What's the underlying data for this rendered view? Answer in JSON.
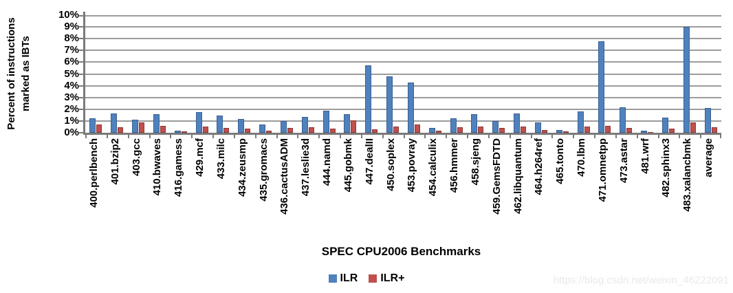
{
  "chart_data": {
    "type": "bar",
    "title": "",
    "xlabel": "SPEC CPU2006 Benchmarks",
    "ylabel": "Percent of instructions marked as IBTs",
    "ylabel_lines": [
      "Percent of instructions",
      "marked as IBTs"
    ],
    "ylim": [
      0,
      10
    ],
    "ytick_step": 1,
    "yticks": [
      "0%",
      "1%",
      "2%",
      "3%",
      "4%",
      "5%",
      "6%",
      "7%",
      "8%",
      "9%",
      "10%"
    ],
    "grid": true,
    "legend_position": "bottom",
    "categories": [
      "400.perlbench",
      "401.bzip2",
      "403.gcc",
      "410.bwaves",
      "416.gamess",
      "429.mcf",
      "433.milc",
      "434.zeusmp",
      "435.gromacs",
      "436.cactusADM",
      "437.leslie3d",
      "444.namd",
      "445.gobmk",
      "447.dealII",
      "450.soplex",
      "453.povray",
      "454.calculix",
      "456.hmmer",
      "458.sjeng",
      "459.GemsFDTD",
      "462.libquantum",
      "464.h264ref",
      "465.tonto",
      "470.lbm",
      "471.omnetpp",
      "473.astar",
      "481.wrf",
      "482.sphinx3",
      "483.xalancbmk",
      "average"
    ],
    "series": [
      {
        "name": "ILR",
        "color": "#4F81BD",
        "border_color": "#3a6191",
        "values": [
          1.2,
          1.65,
          1.1,
          1.55,
          0.2,
          1.75,
          1.45,
          1.15,
          0.7,
          1.0,
          1.35,
          1.9,
          1.55,
          5.75,
          4.8,
          4.25,
          0.4,
          1.25,
          1.6,
          1.0,
          1.65,
          0.9,
          0.25,
          1.8,
          7.75,
          2.15,
          0.15,
          1.3,
          9.0,
          2.1
        ]
      },
      {
        "name": "ILR+",
        "color": "#C0504D",
        "border_color": "#8c3836",
        "values": [
          0.7,
          0.45,
          0.85,
          0.6,
          0.1,
          0.5,
          0.4,
          0.35,
          0.2,
          0.4,
          0.45,
          0.35,
          1.05,
          0.3,
          0.5,
          0.7,
          0.15,
          0.45,
          0.55,
          0.4,
          0.5,
          0.25,
          0.1,
          0.55,
          0.6,
          0.4,
          0.08,
          0.35,
          0.85,
          0.45
        ]
      }
    ],
    "axis_color": "#7a7a7a",
    "gridline_color": "#9c9c9c"
  },
  "watermark": "https://blog.csdn.net/weixin_46222091"
}
